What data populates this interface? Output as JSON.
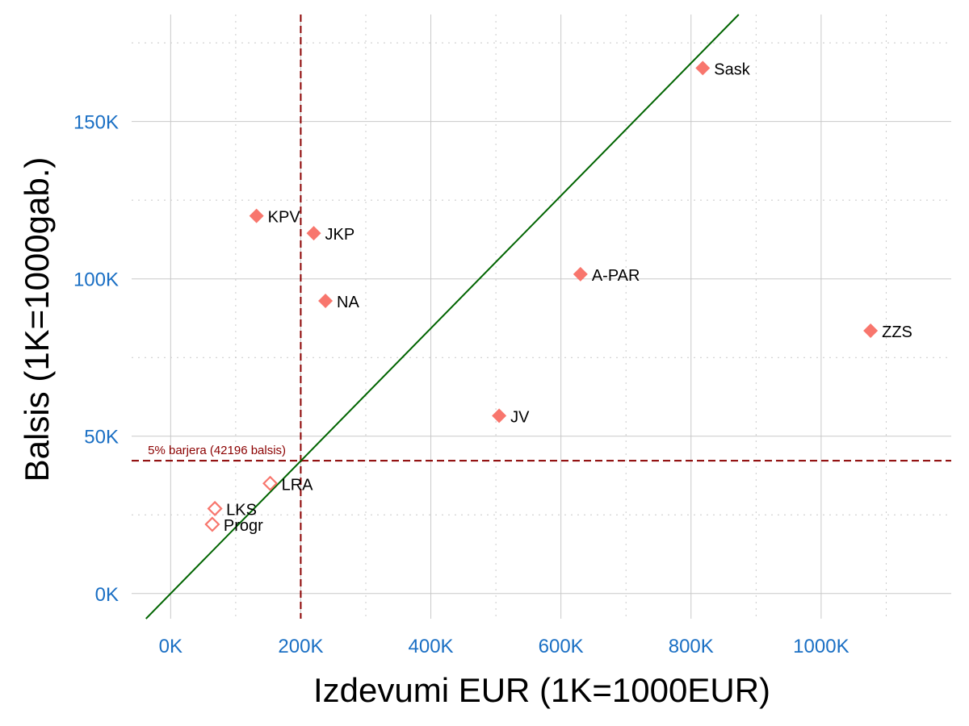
{
  "chart_data": {
    "type": "scatter",
    "xlabel": "Izdevumi EUR (1K=1000EUR)",
    "ylabel": "Balsis (1K=1000gab.)",
    "xlim": [
      -60000,
      1200000
    ],
    "ylim": [
      -8000,
      184000
    ],
    "x_ticks": [
      0,
      200000,
      400000,
      600000,
      800000,
      1000000
    ],
    "x_tick_labels": [
      "0K",
      "200K",
      "400K",
      "600K",
      "800K",
      "1000K"
    ],
    "y_ticks": [
      0,
      50000,
      100000,
      150000
    ],
    "y_tick_labels": [
      "0K",
      "50K",
      "100K",
      "150K"
    ],
    "grid": true,
    "points": [
      {
        "label": "Sask",
        "x": 818000,
        "y": 167000,
        "filled": true
      },
      {
        "label": "KPV",
        "x": 132000,
        "y": 120000,
        "filled": true
      },
      {
        "label": "JKP",
        "x": 220000,
        "y": 114500,
        "filled": true
      },
      {
        "label": "A-PAR",
        "x": 630000,
        "y": 101500,
        "filled": true
      },
      {
        "label": "NA",
        "x": 238000,
        "y": 93000,
        "filled": true
      },
      {
        "label": "ZZS",
        "x": 1076000,
        "y": 83500,
        "filled": true
      },
      {
        "label": "JV",
        "x": 505000,
        "y": 56500,
        "filled": true
      },
      {
        "label": "LRA",
        "x": 153000,
        "y": 35000,
        "filled": false
      },
      {
        "label": "LKS",
        "x": 68000,
        "y": 27000,
        "filled": false
      },
      {
        "label": "Progr",
        "x": 64000,
        "y": 22000,
        "filled": false
      }
    ],
    "threshold": {
      "label": "5% barjera (42196 balsis)",
      "y": 42196
    },
    "vline_x": 200000,
    "diagonal_slope": 0.2107,
    "colors": {
      "points": "#f8766d",
      "threshold": "#8b0000",
      "diagonal": "#006400",
      "tick_text": "#1a6fc4",
      "grid_major": "#c8c8c8",
      "grid_minor": "#c8c8c8"
    }
  }
}
